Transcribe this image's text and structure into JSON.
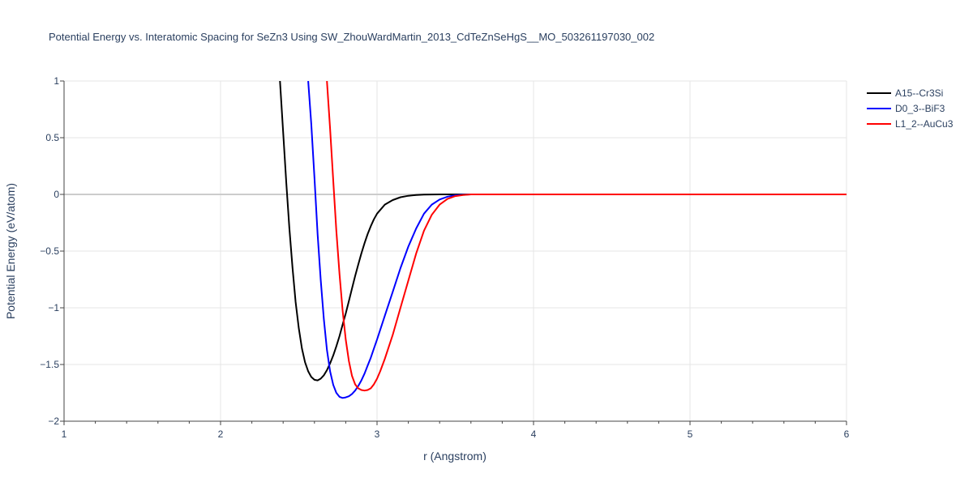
{
  "chart_data": {
    "type": "line",
    "title": "Potential Energy vs. Interatomic Spacing for SeZn3 Using SW_ZhouWardMartin_2013_CdTeZnSeHgS__MO_503261197030_002",
    "xlabel": "r (Angstrom)",
    "ylabel": "Potential Energy (eV/atom)",
    "xlim": [
      1,
      6
    ],
    "ylim": [
      -2,
      1
    ],
    "x_ticks": [
      1,
      2,
      3,
      4,
      5,
      6
    ],
    "x_tick_labels": [
      "1",
      "2",
      "3",
      "4",
      "5",
      "6"
    ],
    "y_ticks": [
      1,
      0.5,
      0,
      -0.5,
      -1,
      -1.5,
      -2
    ],
    "y_tick_labels": [
      "1",
      "0.5",
      "0",
      "−0.5",
      "−1",
      "−1.5",
      "−2"
    ],
    "grid": true,
    "legend_position": "top-right",
    "series": [
      {
        "name": "A15--Cr3Si",
        "color": "#000000",
        "x": [
          2.38,
          2.4,
          2.42,
          2.44,
          2.46,
          2.48,
          2.5,
          2.52,
          2.54,
          2.56,
          2.58,
          2.6,
          2.62,
          2.64,
          2.66,
          2.68,
          2.7,
          2.72,
          2.74,
          2.76,
          2.78,
          2.8,
          2.82,
          2.84,
          2.86,
          2.88,
          2.9,
          2.92,
          2.94,
          2.96,
          2.98,
          3.0,
          3.05,
          3.1,
          3.15,
          3.2,
          3.25,
          3.3,
          3.35,
          3.4,
          3.5,
          3.6,
          3.8,
          4.0,
          5.0,
          6.0
        ],
        "y": [
          1.0,
          0.55,
          0.1,
          -0.3,
          -0.65,
          -0.95,
          -1.18,
          -1.36,
          -1.48,
          -1.56,
          -1.61,
          -1.635,
          -1.64,
          -1.625,
          -1.595,
          -1.55,
          -1.49,
          -1.42,
          -1.34,
          -1.25,
          -1.15,
          -1.05,
          -0.94,
          -0.83,
          -0.72,
          -0.62,
          -0.52,
          -0.43,
          -0.35,
          -0.28,
          -0.22,
          -0.17,
          -0.09,
          -0.05,
          -0.025,
          -0.012,
          -0.005,
          -0.002,
          -0.001,
          0,
          0,
          0,
          0,
          0,
          0,
          0
        ]
      },
      {
        "name": "D0_3--BiF3",
        "color": "#0000ff",
        "x": [
          2.56,
          2.58,
          2.6,
          2.62,
          2.64,
          2.66,
          2.68,
          2.7,
          2.72,
          2.74,
          2.76,
          2.78,
          2.8,
          2.82,
          2.84,
          2.86,
          2.88,
          2.9,
          2.92,
          2.94,
          2.96,
          2.98,
          3.0,
          3.05,
          3.1,
          3.15,
          3.2,
          3.25,
          3.3,
          3.35,
          3.4,
          3.45,
          3.5,
          3.55,
          3.6,
          3.8,
          4.0,
          5.0,
          6.0
        ],
        "y": [
          1.0,
          0.62,
          0.15,
          -0.35,
          -0.75,
          -1.1,
          -1.37,
          -1.56,
          -1.68,
          -1.75,
          -1.785,
          -1.795,
          -1.79,
          -1.78,
          -1.76,
          -1.73,
          -1.69,
          -1.64,
          -1.58,
          -1.51,
          -1.44,
          -1.36,
          -1.28,
          -1.07,
          -0.86,
          -0.65,
          -0.46,
          -0.3,
          -0.17,
          -0.09,
          -0.045,
          -0.02,
          -0.008,
          -0.003,
          0,
          0,
          0,
          0,
          0
        ]
      },
      {
        "name": "L1_2--AuCu3",
        "color": "#ff0000",
        "x": [
          2.68,
          2.7,
          2.72,
          2.74,
          2.76,
          2.78,
          2.8,
          2.82,
          2.84,
          2.86,
          2.88,
          2.9,
          2.92,
          2.94,
          2.96,
          2.98,
          3.0,
          3.02,
          3.05,
          3.1,
          3.15,
          3.2,
          3.25,
          3.3,
          3.35,
          3.4,
          3.45,
          3.5,
          3.55,
          3.6,
          3.8,
          4.0,
          5.0,
          6.0
        ],
        "y": [
          1.0,
          0.58,
          0.12,
          -0.32,
          -0.7,
          -1.02,
          -1.28,
          -1.47,
          -1.6,
          -1.675,
          -1.71,
          -1.725,
          -1.73,
          -1.725,
          -1.71,
          -1.675,
          -1.625,
          -1.56,
          -1.45,
          -1.24,
          -1.0,
          -0.76,
          -0.52,
          -0.32,
          -0.18,
          -0.09,
          -0.04,
          -0.015,
          -0.005,
          0,
          0,
          0,
          0,
          0
        ]
      }
    ]
  }
}
